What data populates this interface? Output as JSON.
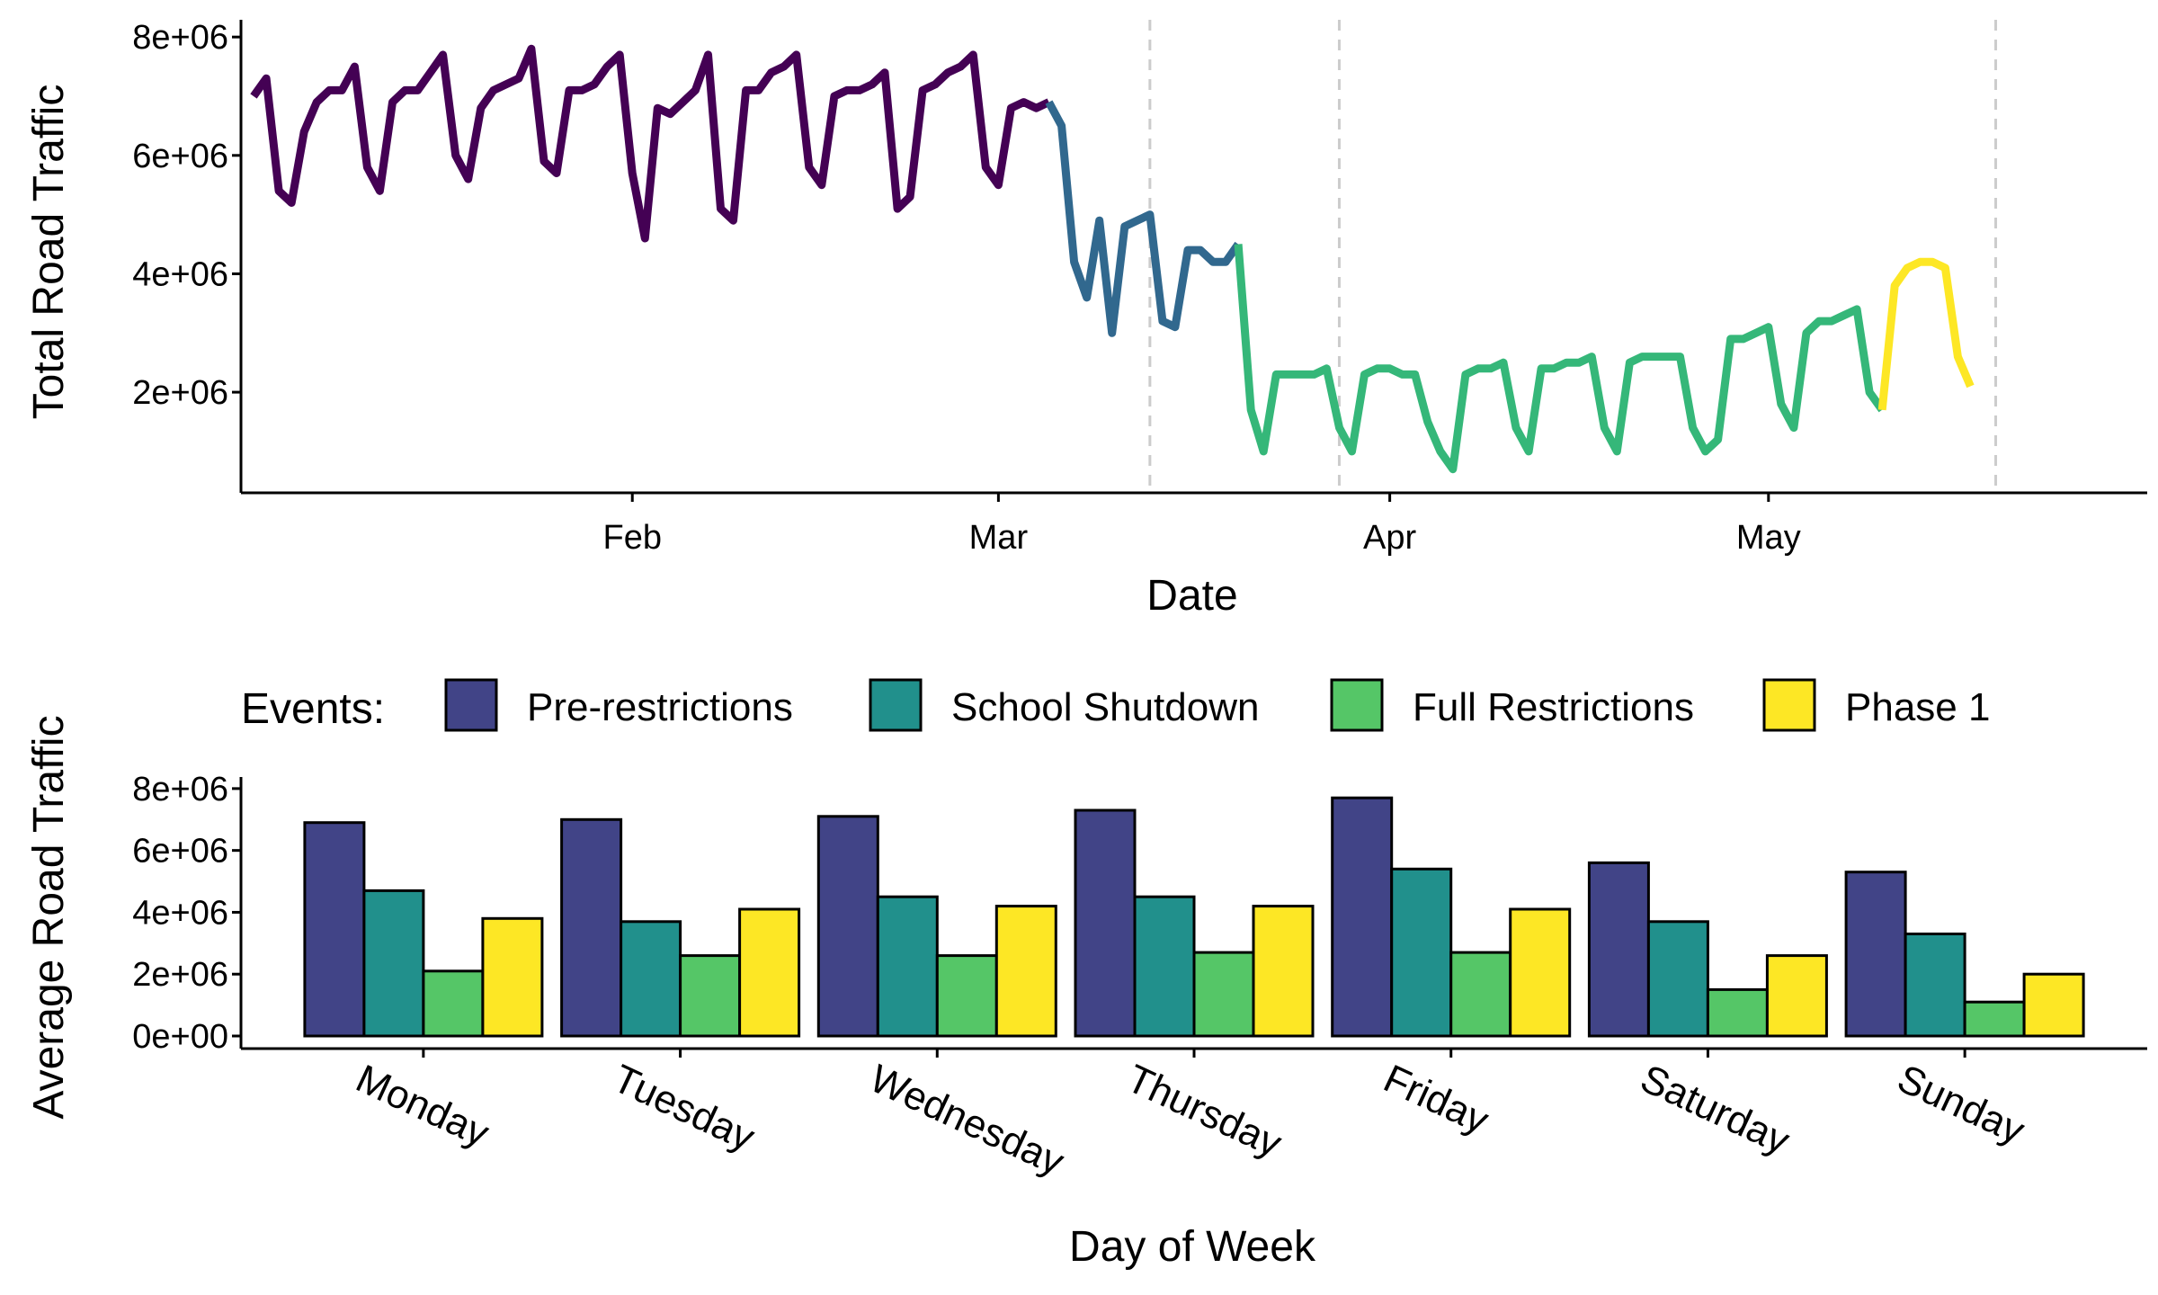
{
  "chart_data": [
    {
      "type": "line",
      "xlabel": "Date",
      "ylabel": "Total Road Traffic",
      "x_range": [
        "2020-01-01",
        "2020-05-31"
      ],
      "ylim": [
        300000,
        8200000
      ],
      "y_ticks": [
        2000000,
        4000000,
        6000000,
        8000000
      ],
      "y_tick_labels": [
        "2e+06",
        "4e+06",
        "6e+06",
        "8e+06"
      ],
      "x_ticks": [
        "2020-02-01",
        "2020-03-01",
        "2020-04-01",
        "2020-05-01"
      ],
      "x_tick_labels": [
        "Feb",
        "Mar",
        "Apr",
        "May"
      ],
      "grid": false,
      "event_lines": [
        "2020-03-13",
        "2020-03-28",
        "2020-05-19"
      ],
      "series": [
        {
          "color": "#440154",
          "points": [
            [
              "2020-01-02",
              7000000
            ],
            [
              "2020-01-03",
              7300000
            ],
            [
              "2020-01-04",
              5400000
            ],
            [
              "2020-01-05",
              5200000
            ],
            [
              "2020-01-06",
              6400000
            ],
            [
              "2020-01-07",
              6900000
            ],
            [
              "2020-01-08",
              7100000
            ],
            [
              "2020-01-09",
              7100000
            ],
            [
              "2020-01-10",
              7500000
            ],
            [
              "2020-01-11",
              5800000
            ],
            [
              "2020-01-12",
              5400000
            ],
            [
              "2020-01-13",
              6900000
            ],
            [
              "2020-01-14",
              7100000
            ],
            [
              "2020-01-15",
              7100000
            ],
            [
              "2020-01-16",
              7400000
            ],
            [
              "2020-01-17",
              7700000
            ],
            [
              "2020-01-18",
              6000000
            ],
            [
              "2020-01-19",
              5600000
            ],
            [
              "2020-01-20",
              6800000
            ],
            [
              "2020-01-21",
              7100000
            ],
            [
              "2020-01-22",
              7200000
            ],
            [
              "2020-01-23",
              7300000
            ],
            [
              "2020-01-24",
              7800000
            ],
            [
              "2020-01-25",
              5900000
            ],
            [
              "2020-01-26",
              5700000
            ],
            [
              "2020-01-27",
              7100000
            ],
            [
              "2020-01-28",
              7100000
            ],
            [
              "2020-01-29",
              7200000
            ],
            [
              "2020-01-30",
              7500000
            ],
            [
              "2020-01-31",
              7700000
            ],
            [
              "2020-02-01",
              5700000
            ],
            [
              "2020-02-02",
              4600000
            ],
            [
              "2020-02-03",
              6800000
            ],
            [
              "2020-02-04",
              6700000
            ],
            [
              "2020-02-05",
              6900000
            ],
            [
              "2020-02-06",
              7100000
            ],
            [
              "2020-02-07",
              7700000
            ],
            [
              "2020-02-08",
              5100000
            ],
            [
              "2020-02-09",
              4900000
            ],
            [
              "2020-02-10",
              7100000
            ],
            [
              "2020-02-11",
              7100000
            ],
            [
              "2020-02-12",
              7400000
            ],
            [
              "2020-02-13",
              7500000
            ],
            [
              "2020-02-14",
              7700000
            ],
            [
              "2020-02-15",
              5800000
            ],
            [
              "2020-02-16",
              5500000
            ],
            [
              "2020-02-17",
              7000000
            ],
            [
              "2020-02-18",
              7100000
            ],
            [
              "2020-02-19",
              7100000
            ],
            [
              "2020-02-20",
              7200000
            ],
            [
              "2020-02-21",
              7400000
            ],
            [
              "2020-02-22",
              5100000
            ],
            [
              "2020-02-23",
              5300000
            ],
            [
              "2020-02-24",
              7100000
            ],
            [
              "2020-02-25",
              7200000
            ],
            [
              "2020-02-26",
              7400000
            ],
            [
              "2020-02-27",
              7500000
            ],
            [
              "2020-02-28",
              7700000
            ],
            [
              "2020-02-29",
              5800000
            ],
            [
              "2020-03-01",
              5500000
            ],
            [
              "2020-03-02",
              6800000
            ],
            [
              "2020-03-03",
              6900000
            ],
            [
              "2020-03-04",
              6800000
            ],
            [
              "2020-03-05",
              6900000
            ]
          ]
        },
        {
          "color": "#31688E",
          "points": [
            [
              "2020-03-05",
              6900000
            ],
            [
              "2020-03-06",
              6500000
            ],
            [
              "2020-03-07",
              4200000
            ],
            [
              "2020-03-08",
              3600000
            ],
            [
              "2020-03-09",
              4900000
            ],
            [
              "2020-03-10",
              3000000
            ],
            [
              "2020-03-11",
              4800000
            ],
            [
              "2020-03-12",
              4900000
            ],
            [
              "2020-03-13",
              5000000
            ],
            [
              "2020-03-14",
              3200000
            ],
            [
              "2020-03-15",
              3100000
            ],
            [
              "2020-03-16",
              4400000
            ],
            [
              "2020-03-17",
              4400000
            ],
            [
              "2020-03-18",
              4200000
            ],
            [
              "2020-03-19",
              4200000
            ],
            [
              "2020-03-20",
              4500000
            ]
          ]
        },
        {
          "color": "#35B779",
          "points": [
            [
              "2020-03-20",
              4500000
            ],
            [
              "2020-03-21",
              1700000
            ],
            [
              "2020-03-22",
              1000000
            ],
            [
              "2020-03-23",
              2300000
            ],
            [
              "2020-03-24",
              2300000
            ],
            [
              "2020-03-25",
              2300000
            ],
            [
              "2020-03-26",
              2300000
            ],
            [
              "2020-03-27",
              2400000
            ],
            [
              "2020-03-28",
              1400000
            ],
            [
              "2020-03-29",
              1000000
            ],
            [
              "2020-03-30",
              2300000
            ],
            [
              "2020-03-31",
              2400000
            ],
            [
              "2020-04-01",
              2400000
            ],
            [
              "2020-04-02",
              2300000
            ],
            [
              "2020-04-03",
              2300000
            ],
            [
              "2020-04-04",
              1500000
            ],
            [
              "2020-04-05",
              1000000
            ],
            [
              "2020-04-06",
              700000
            ],
            [
              "2020-04-07",
              2300000
            ],
            [
              "2020-04-08",
              2400000
            ],
            [
              "2020-04-09",
              2400000
            ],
            [
              "2020-04-10",
              2500000
            ],
            [
              "2020-04-11",
              1400000
            ],
            [
              "2020-04-12",
              1000000
            ],
            [
              "2020-04-13",
              2400000
            ],
            [
              "2020-04-14",
              2400000
            ],
            [
              "2020-04-15",
              2500000
            ],
            [
              "2020-04-16",
              2500000
            ],
            [
              "2020-04-17",
              2600000
            ],
            [
              "2020-04-18",
              1400000
            ],
            [
              "2020-04-19",
              1000000
            ],
            [
              "2020-04-20",
              2500000
            ],
            [
              "2020-04-21",
              2600000
            ],
            [
              "2020-04-22",
              2600000
            ],
            [
              "2020-04-23",
              2600000
            ],
            [
              "2020-04-24",
              2600000
            ],
            [
              "2020-04-25",
              1400000
            ],
            [
              "2020-04-26",
              1000000
            ],
            [
              "2020-04-27",
              1200000
            ],
            [
              "2020-04-28",
              2900000
            ],
            [
              "2020-04-29",
              2900000
            ],
            [
              "2020-04-30",
              3000000
            ],
            [
              "2020-05-01",
              3100000
            ],
            [
              "2020-05-02",
              1800000
            ],
            [
              "2020-05-03",
              1400000
            ],
            [
              "2020-05-04",
              3000000
            ],
            [
              "2020-05-05",
              3200000
            ],
            [
              "2020-05-06",
              3200000
            ],
            [
              "2020-05-07",
              3300000
            ],
            [
              "2020-05-08",
              3400000
            ],
            [
              "2020-05-09",
              2000000
            ],
            [
              "2020-05-10",
              1700000
            ]
          ]
        },
        {
          "color": "#FDE725",
          "points": [
            [
              "2020-05-10",
              1700000
            ],
            [
              "2020-05-11",
              3800000
            ],
            [
              "2020-05-12",
              4100000
            ],
            [
              "2020-05-13",
              4200000
            ],
            [
              "2020-05-14",
              4200000
            ],
            [
              "2020-05-15",
              4100000
            ],
            [
              "2020-05-16",
              2600000
            ],
            [
              "2020-05-17",
              2100000
            ]
          ]
        }
      ]
    },
    {
      "type": "bar",
      "xlabel": "Day of Week",
      "ylabel": "Average Road Traffic",
      "ylim": [
        0,
        8200000
      ],
      "y_ticks": [
        0,
        2000000,
        4000000,
        6000000,
        8000000
      ],
      "y_tick_labels": [
        "0e+00",
        "2e+06",
        "4e+06",
        "6e+06",
        "8e+06"
      ],
      "categories": [
        "Monday",
        "Tuesday",
        "Wednesday",
        "Thursday",
        "Friday",
        "Saturday",
        "Sunday"
      ],
      "legend": {
        "title": "Events:",
        "position": "top"
      },
      "grid": false,
      "series": [
        {
          "name": "Pre-restrictions",
          "color": "#414487",
          "values": [
            6900000,
            7000000,
            7100000,
            7300000,
            7700000,
            5600000,
            5300000
          ]
        },
        {
          "name": "School Shutdown",
          "color": "#21908C",
          "values": [
            4700000,
            3700000,
            4500000,
            4500000,
            5400000,
            3700000,
            3300000
          ]
        },
        {
          "name": "Full Restrictions",
          "color": "#55C667",
          "values": [
            2100000,
            2600000,
            2600000,
            2700000,
            2700000,
            1500000,
            1100000
          ]
        },
        {
          "name": "Phase 1",
          "color": "#FDE725",
          "values": [
            3800000,
            4100000,
            4200000,
            4200000,
            4100000,
            2600000,
            2000000
          ]
        }
      ]
    }
  ]
}
